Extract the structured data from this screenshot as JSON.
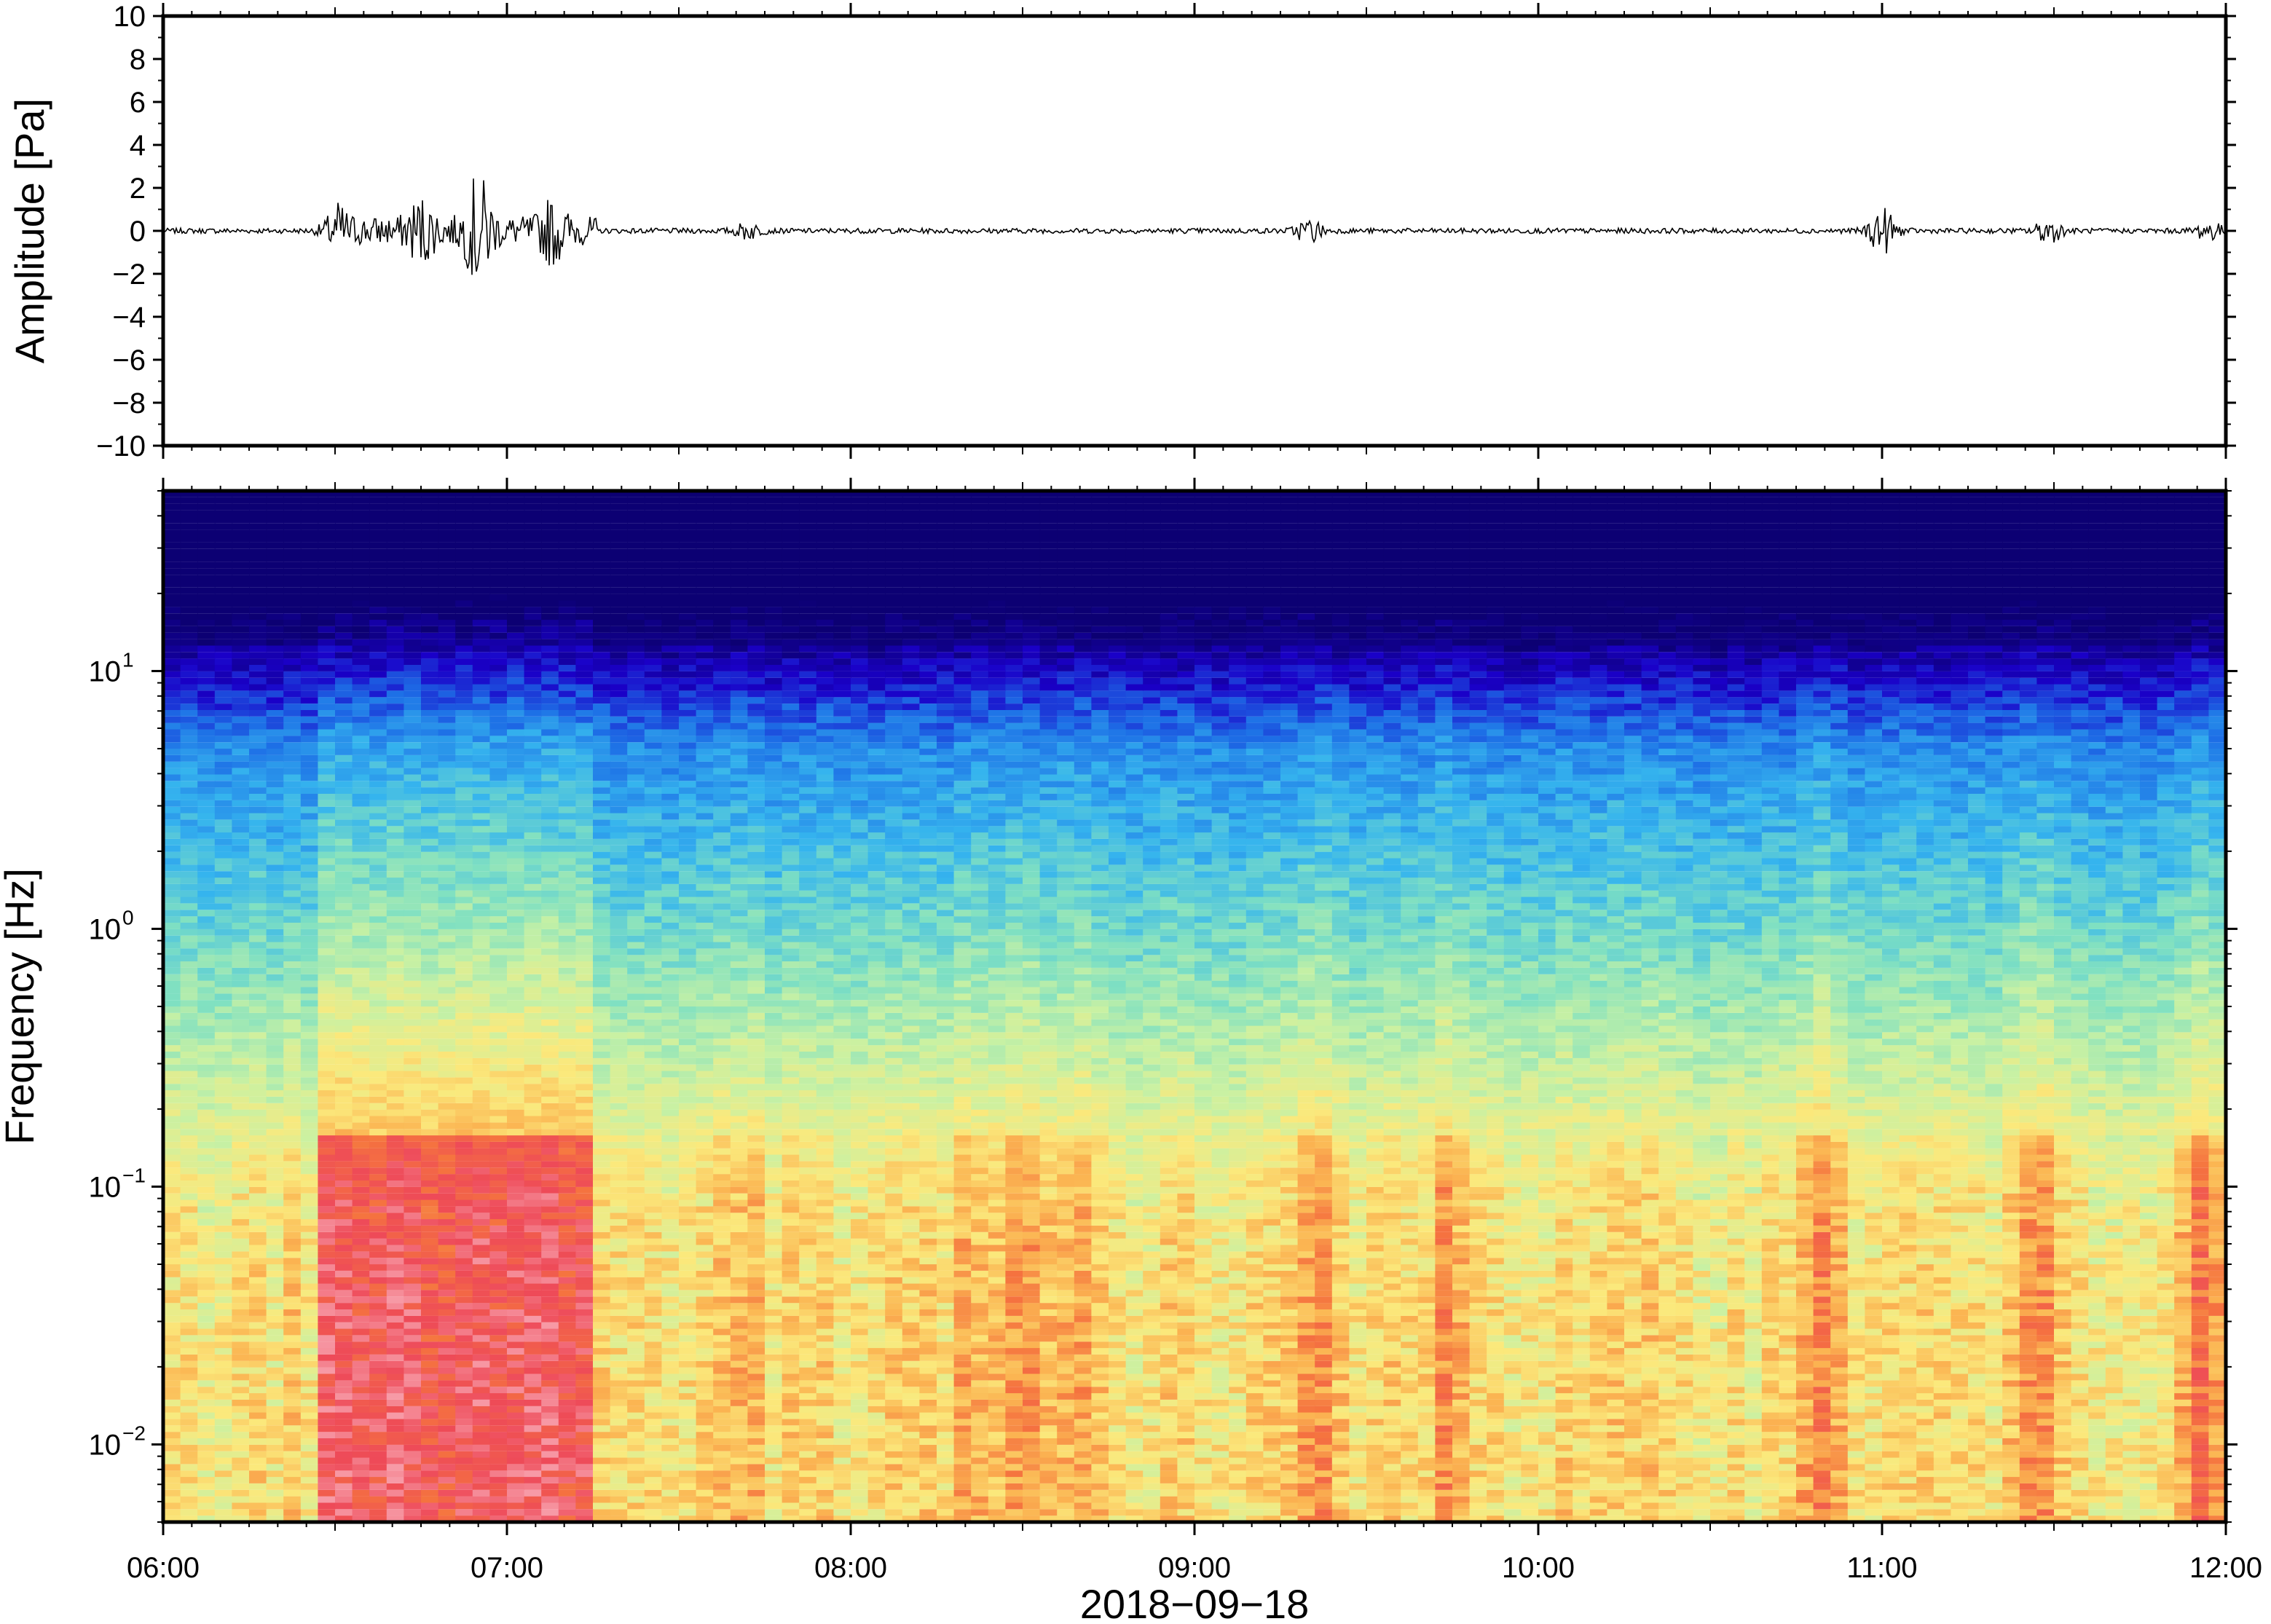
{
  "chart_data": [
    {
      "type": "line",
      "panel": "waveform",
      "ylabel": "Amplitude [Pa]",
      "ylim": [
        -10,
        10
      ],
      "yticks": [
        "10",
        "8",
        "6",
        "4",
        "2",
        "0",
        "−2",
        "−4",
        "−6",
        "−8",
        "−10"
      ],
      "ytick_values": [
        10,
        8,
        6,
        4,
        2,
        0,
        -2,
        -4,
        -6,
        -8,
        -10
      ],
      "xlim": [
        "06:00",
        "12:00"
      ],
      "series": [
        {
          "bursts": [
            {
              "t": "06:30",
              "amp": 1.2
            },
            {
              "t": "06:45",
              "amp": 1.6
            },
            {
              "t": "06:55",
              "amp": 3.0
            },
            {
              "t": "07:08",
              "amp": 1.5
            },
            {
              "t": "07:42",
              "amp": 0.5
            },
            {
              "t": "09:20",
              "amp": 0.8
            },
            {
              "t": "11:00",
              "amp": 1.5
            },
            {
              "t": "11:29",
              "amp": 0.8
            },
            {
              "t": "11:57",
              "amp": 0.6
            }
          ]
        }
      ],
      "color": "#000000"
    },
    {
      "type": "heatmap",
      "panel": "spectrogram",
      "ylabel": "Frequency [Hz]",
      "xlabel": "2018−09−18",
      "yscale": "log",
      "ylim": [
        0.005,
        50
      ],
      "yticks": [
        {
          "base": "10",
          "exp": "1",
          "value": 10
        },
        {
          "base": "10",
          "exp": "0",
          "value": 1
        },
        {
          "base": "10",
          "exp": "−1",
          "value": 0.1
        },
        {
          "base": "10",
          "exp": "−2",
          "value": 0.01
        }
      ],
      "xticks": [
        "06:00",
        "07:00",
        "08:00",
        "09:00",
        "10:00",
        "11:00",
        "12:00"
      ],
      "colormap": [
        "#0c0073",
        "#1a00c8",
        "#1d6fe6",
        "#35b4ee",
        "#7fe0c2",
        "#c9f1a3",
        "#fbe97c",
        "#fbb552",
        "#f5733f",
        "#ee4a58",
        "#f79aa6"
      ]
    }
  ]
}
